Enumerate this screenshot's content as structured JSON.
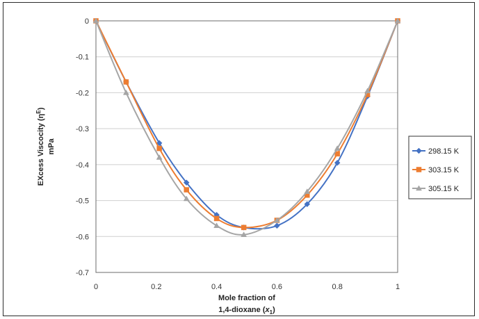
{
  "chart_data": {
    "type": "line",
    "title": "",
    "ylabel_line1": "EXcess Viscocity (η",
    "ylabel_sup": "E",
    "ylabel_line1_end": ")",
    "ylabel_line2": "mPa",
    "xlabel_line1": "Mole fraction of",
    "xlabel_line2_main": "1,4-dioxane (",
    "xlabel_line2_var": "x",
    "xlabel_line2_sub": "1",
    "xlabel_line2_end": ")",
    "xlim": [
      0,
      1
    ],
    "ylim": [
      -0.7,
      0
    ],
    "x_ticks": [
      0,
      0.2,
      0.4,
      0.6,
      0.8,
      1
    ],
    "x_tick_labels": [
      "0",
      "0.2",
      "0.4",
      "0.6",
      "0.8",
      "1"
    ],
    "y_ticks": [
      0,
      -0.1,
      -0.2,
      -0.3,
      -0.4,
      -0.5,
      -0.6,
      -0.7
    ],
    "y_tick_labels": [
      "0",
      "-0.1",
      "-0.2",
      "-0.3",
      "-0.4",
      "-0.5",
      "-0.6",
      "-0.7"
    ],
    "grid": true,
    "legend_position": "right",
    "series": [
      {
        "name": "298.15 K",
        "color": "#4472C4",
        "marker": "diamond",
        "x": [
          0,
          0.1,
          0.21,
          0.3,
          0.4,
          0.49,
          0.6,
          0.7,
          0.8,
          0.9,
          1
        ],
        "y": [
          0,
          -0.17,
          -0.34,
          -0.45,
          -0.54,
          -0.575,
          -0.57,
          -0.51,
          -0.395,
          -0.21,
          0
        ]
      },
      {
        "name": "303.15 K",
        "color": "#ED7D31",
        "marker": "square",
        "x": [
          0,
          0.1,
          0.21,
          0.3,
          0.4,
          0.49,
          0.6,
          0.7,
          0.8,
          0.9,
          1
        ],
        "y": [
          0,
          -0.17,
          -0.355,
          -0.47,
          -0.55,
          -0.575,
          -0.555,
          -0.485,
          -0.37,
          -0.205,
          0
        ]
      },
      {
        "name": "305.15 K",
        "color": "#A5A5A5",
        "marker": "triangle",
        "x": [
          0,
          0.1,
          0.21,
          0.3,
          0.4,
          0.49,
          0.6,
          0.7,
          0.8,
          0.9,
          1
        ],
        "y": [
          0,
          -0.2,
          -0.38,
          -0.495,
          -0.57,
          -0.595,
          -0.555,
          -0.475,
          -0.355,
          -0.195,
          0
        ]
      }
    ]
  }
}
